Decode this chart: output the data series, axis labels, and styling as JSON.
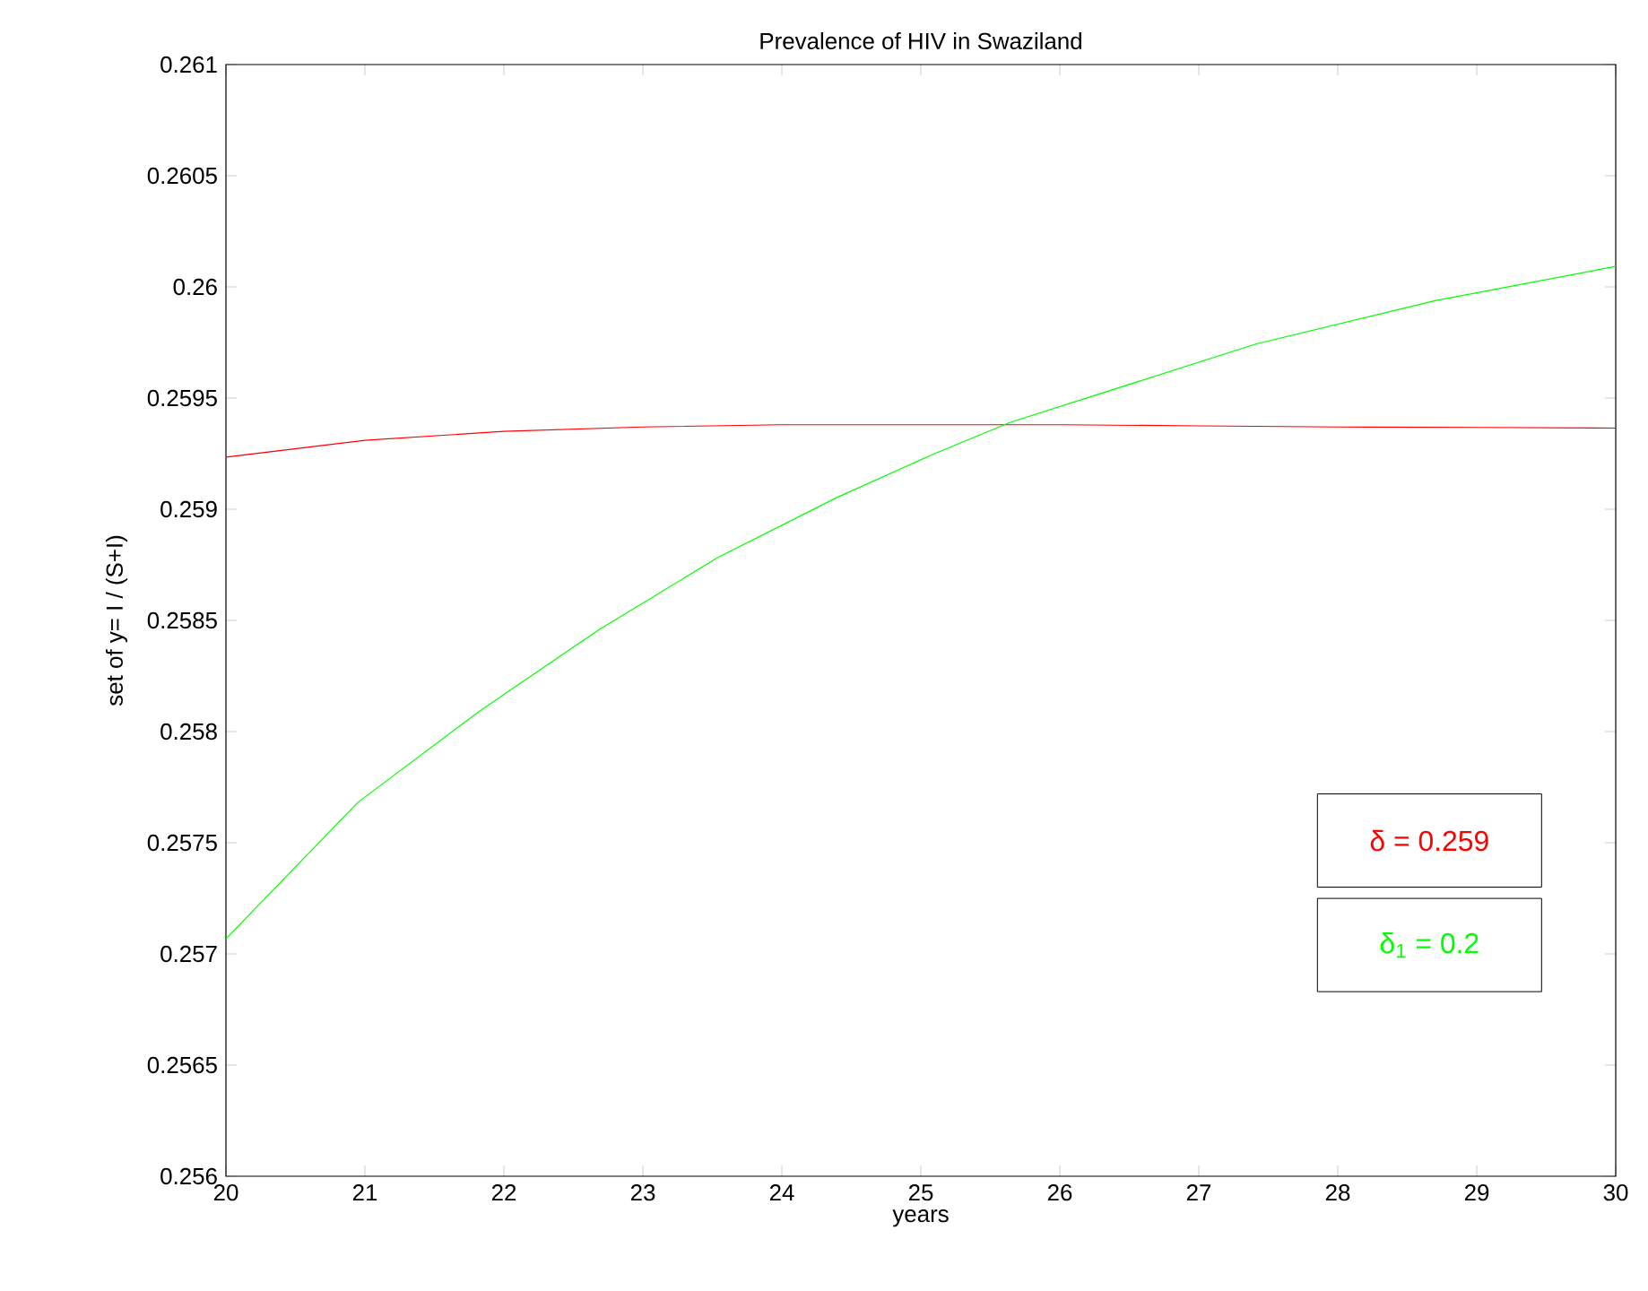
{
  "chart_data": {
    "type": "line",
    "title": "Prevalence of HIV in Swaziland",
    "xlabel": "years",
    "ylabel": "set of y= I / (S+I)",
    "xlim": [
      20,
      30
    ],
    "ylim": [
      0.256,
      0.261
    ],
    "xticks": [
      20,
      21,
      22,
      23,
      24,
      25,
      26,
      27,
      28,
      29,
      30
    ],
    "yticks": [
      0.256,
      0.2565,
      0.257,
      0.2575,
      0.258,
      0.2585,
      0.259,
      0.2595,
      0.26,
      0.2605,
      0.261
    ],
    "series": [
      {
        "name": "δ = 0.259",
        "color": "#ff0000",
        "x": [
          20,
          21,
          22,
          23,
          24,
          25,
          26,
          27,
          28,
          29,
          30
        ],
        "values": [
          0.259234,
          0.25931,
          0.25935,
          0.25937,
          0.25938,
          0.25938,
          0.25938,
          0.259375,
          0.25937,
          0.259368,
          0.259365
        ]
      },
      {
        "name": "δ$_{1}$ = 0.2",
        "color": "#00ff00",
        "x": [
          20,
          20.95,
          21.82,
          22.68,
          23.54,
          24.4,
          25.08,
          25.64,
          27.41,
          28.7,
          30
        ],
        "values": [
          0.257068,
          0.257682,
          0.25809,
          0.258457,
          0.258783,
          0.259054,
          0.259245,
          0.25939,
          0.259743,
          0.259938,
          0.260092
        ]
      }
    ]
  }
}
